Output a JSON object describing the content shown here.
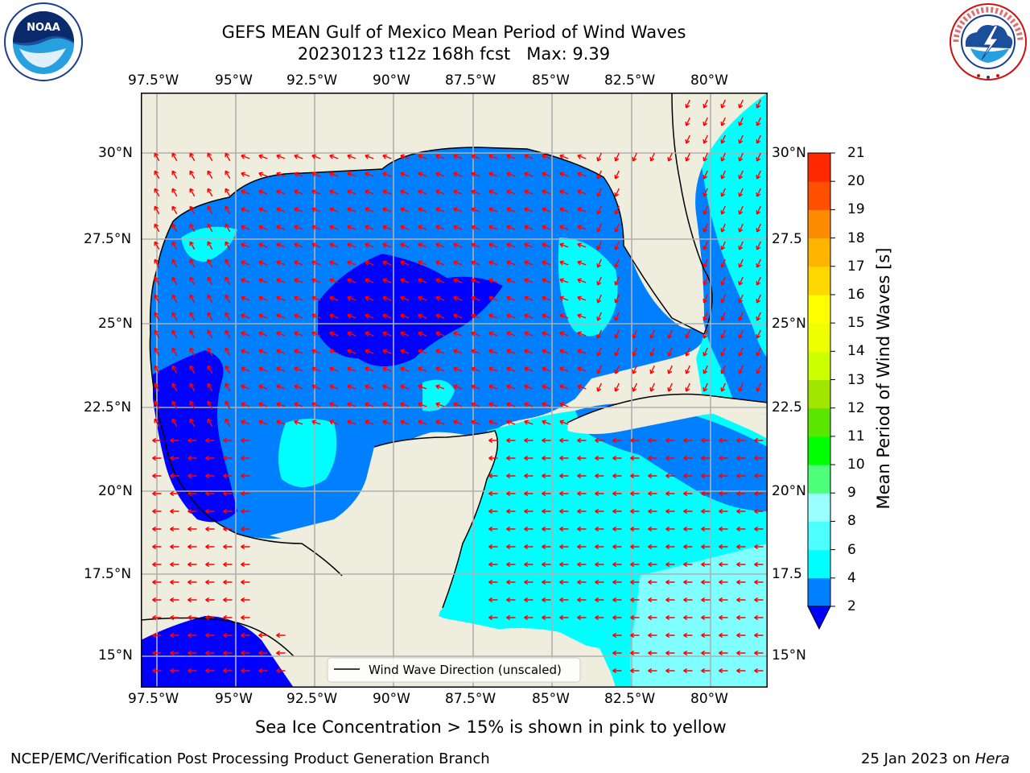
{
  "title": {
    "line1": "GEFS MEAN Gulf of Mexico Mean Period of Wind Waves",
    "line2": "20230123 t12z 168h fcst   Max: 9.39"
  },
  "logos": {
    "noaa": {
      "icon": "noaa-logo",
      "text": "NOAA",
      "ring_text": "NATIONAL OCEANIC AND ATMOSPHERIC ADMINISTRATION · U.S. DEPARTMENT OF COMMERCE"
    },
    "nws": {
      "icon": "nws-logo",
      "ring_text": "NATIONAL WEATHER SERVICE"
    }
  },
  "map": {
    "lon_labels": [
      "97.5°W",
      "95°W",
      "92.5°W",
      "90°W",
      "87.5°W",
      "85°W",
      "82.5°W",
      "80°W"
    ],
    "lat_labels_left": [
      "30°N",
      "27.5°N",
      "25°N",
      "22.5°N",
      "20°N",
      "17.5°N",
      "15°N"
    ],
    "lat_labels_right": [
      "30°N",
      "27.5",
      "25°N",
      "22.5",
      "20°N",
      "17.5",
      "15°N"
    ],
    "legend_label": "Wind Wave Direction (unscaled)",
    "colors": {
      "land": "#efedde",
      "ocean_2_4": "#007fff",
      "ocean_lt2": "#0000ff",
      "ocean_4_6": "#00ffff",
      "ocean_6_8": "#7fffff",
      "arrows": "#ff0000",
      "gridlines": "#b0b0b0"
    }
  },
  "colorbar": {
    "label": "Mean Period of Wind Waves [s]",
    "ticks": [
      "2",
      "4",
      "6",
      "8",
      "9",
      "10",
      "11",
      "12",
      "13",
      "14",
      "15",
      "16",
      "17",
      "18",
      "19",
      "20",
      "21"
    ],
    "colors": [
      "#0000ff",
      "#007fff",
      "#00ffff",
      "#4dffff",
      "#99ffff",
      "#4dff7a",
      "#00ff00",
      "#5be600",
      "#a2e600",
      "#ccff00",
      "#eeff00",
      "#ffff00",
      "#ffd700",
      "#ffb400",
      "#ff8c00",
      "#ff5000",
      "#ff2800",
      "#ff0000"
    ]
  },
  "footer": {
    "sea_ice_note": "Sea Ice Concentration > 15% is shown in pink to yellow",
    "credit": "NCEP/EMC/Verification Post Processing Product Generation Branch",
    "date": "25 Jan 2023 on",
    "machine": "Hera"
  }
}
